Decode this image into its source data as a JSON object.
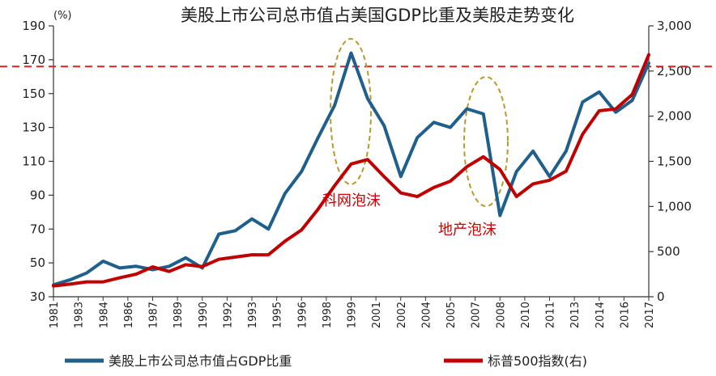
{
  "chart_data": {
    "type": "line",
    "title": "美股上市公司总市值占美国GDP比重及美股走势变化",
    "left_axis_unit": "(%)",
    "ylim_left": [
      30,
      190
    ],
    "yticks_left": [
      "30",
      "50",
      "70",
      "90",
      "110",
      "130",
      "150",
      "170",
      "190"
    ],
    "ylim_right": [
      0,
      3000
    ],
    "yticks_right": [
      "0",
      "500",
      "1,000",
      "1,500",
      "2,000",
      "2,500",
      "3,000"
    ],
    "x_tick_labels": [
      "1981",
      "1983",
      "1984",
      "1986",
      "1987",
      "1989",
      "1990",
      "1992",
      "1993",
      "1995",
      "1996",
      "1998",
      "1999",
      "2001",
      "2002",
      "2004",
      "2005",
      "2007",
      "2008",
      "2010",
      "2011",
      "2013",
      "2014",
      "2016",
      "2017"
    ],
    "reference_line": {
      "axis": "left",
      "value": 166,
      "color": "#e02020",
      "style": "dashed"
    },
    "series": [
      {
        "name": "美股上市公司总市值占GDP比重",
        "axis": "left",
        "color": "#1f5f8b",
        "values": [
          37,
          40,
          44,
          51,
          47,
          48,
          46,
          48,
          53,
          47,
          67,
          69,
          76,
          70,
          91,
          104,
          124,
          143,
          174,
          147,
          131,
          101,
          124,
          133,
          130,
          141,
          138,
          78,
          104,
          116,
          101,
          116,
          145,
          151,
          139,
          146,
          168
        ]
      },
      {
        "name": "标普500指数(右)",
        "axis": "right",
        "color": "#c00000",
        "values": [
          120,
          140,
          165,
          165,
          210,
          250,
          330,
          280,
          355,
          335,
          415,
          440,
          465,
          465,
          615,
          740,
          970,
          1230,
          1470,
          1520,
          1330,
          1150,
          1110,
          1210,
          1280,
          1440,
          1550,
          1410,
          1110,
          1250,
          1290,
          1390,
          1800,
          2060,
          2080,
          2240,
          2680
        ]
      }
    ],
    "annotations": [
      {
        "text": "科网泡沫",
        "color": "#d00000"
      },
      {
        "text": "地产泡沫",
        "color": "#d00000"
      }
    ],
    "legend_position": "bottom"
  }
}
